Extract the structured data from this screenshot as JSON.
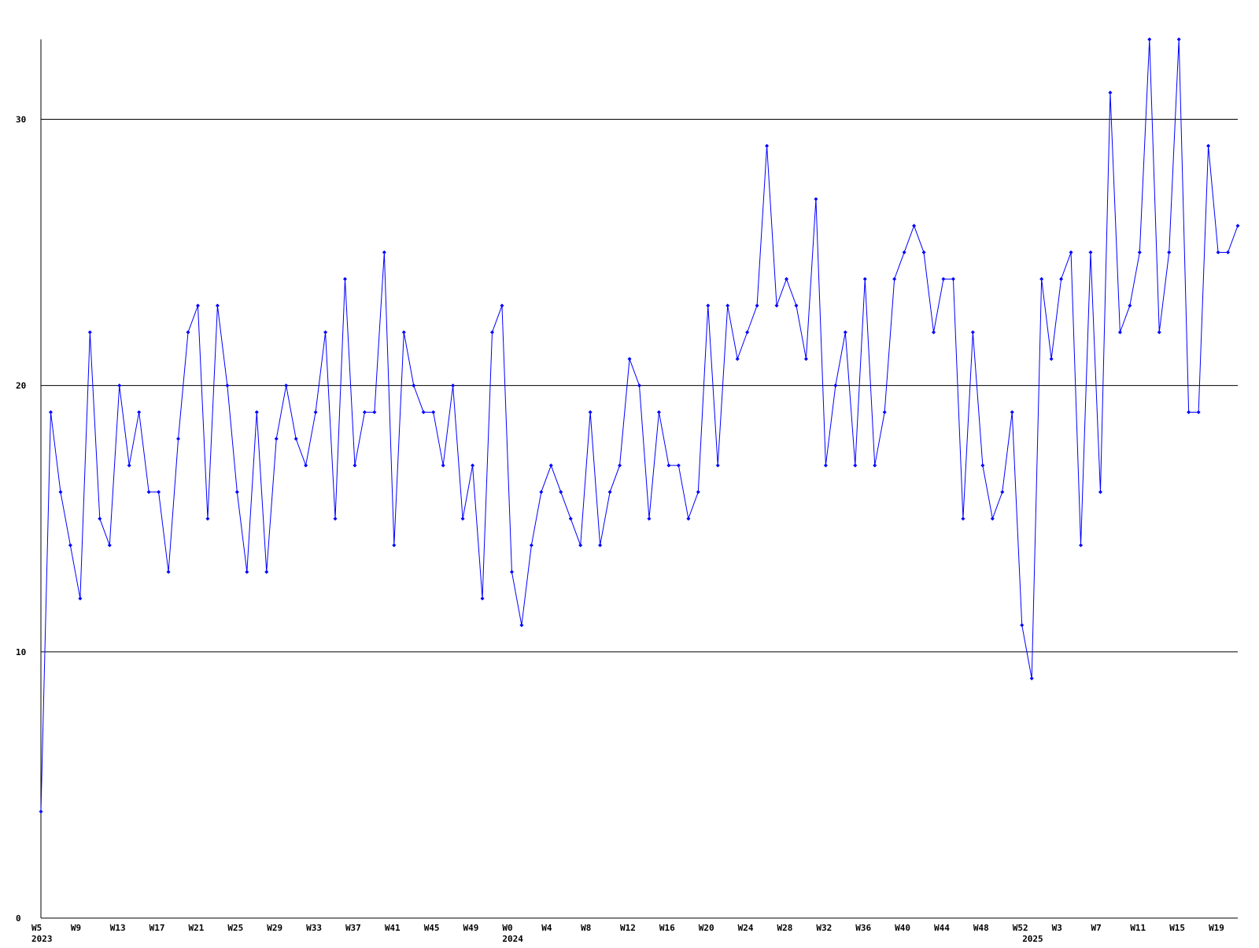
{
  "chart_data": {
    "type": "line",
    "categories": [
      "W5",
      null,
      null,
      null,
      "W9",
      null,
      null,
      null,
      "W13",
      null,
      null,
      null,
      "W17",
      null,
      null,
      null,
      "W21",
      null,
      null,
      null,
      "W25",
      null,
      null,
      null,
      "W29",
      null,
      null,
      null,
      "W33",
      null,
      null,
      null,
      "W37",
      null,
      null,
      null,
      "W41",
      null,
      null,
      null,
      "W45",
      null,
      null,
      null,
      "W49",
      null,
      null,
      null,
      "W0",
      null,
      null,
      null,
      "W4",
      null,
      null,
      null,
      "W8",
      null,
      null,
      null,
      "W12",
      null,
      null,
      null,
      "W16",
      null,
      null,
      null,
      "W20",
      null,
      null,
      null,
      "W24",
      null,
      null,
      null,
      "W28",
      null,
      null,
      null,
      "W32",
      null,
      null,
      null,
      "W36",
      null,
      null,
      null,
      "W40",
      null,
      null,
      null,
      "W44",
      null,
      null,
      null,
      "W48",
      null,
      null,
      null,
      "W52",
      null,
      null,
      null,
      "W3",
      null,
      null,
      null,
      "W7",
      null,
      null,
      null,
      "W11",
      null,
      null,
      null,
      "W15",
      null,
      null,
      null,
      "W19",
      null,
      null
    ],
    "year_labels": [
      "2023",
      null,
      null,
      null,
      null,
      null,
      null,
      null,
      null,
      null,
      null,
      null,
      null,
      null,
      null,
      null,
      null,
      null,
      null,
      null,
      null,
      null,
      null,
      null,
      null,
      null,
      null,
      null,
      null,
      null,
      null,
      null,
      null,
      null,
      null,
      null,
      null,
      null,
      null,
      null,
      null,
      null,
      null,
      null,
      null,
      null,
      null,
      null,
      "2024",
      null,
      null,
      null,
      null,
      null,
      null,
      null,
      null,
      null,
      null,
      null,
      null,
      null,
      null,
      null,
      null,
      null,
      null,
      null,
      null,
      null,
      null,
      null,
      null,
      null,
      null,
      null,
      null,
      null,
      null,
      null,
      null,
      null,
      null,
      null,
      null,
      null,
      null,
      null,
      null,
      null,
      null,
      null,
      null,
      null,
      null,
      null,
      null,
      null,
      null,
      null,
      null,
      "2025",
      null,
      null,
      null,
      null,
      null,
      null,
      null,
      null,
      null,
      null,
      null,
      null,
      null,
      null,
      null,
      null,
      null,
      null,
      null,
      null,
      null
    ],
    "series": [
      {
        "color": "#0000ff",
        "values": [
          4,
          19,
          16,
          14,
          12,
          22,
          15,
          14,
          20,
          17,
          19,
          16,
          16,
          13,
          18,
          22,
          23,
          15,
          23,
          20,
          16,
          13,
          19,
          13,
          18,
          20,
          18,
          17,
          19,
          22,
          15,
          24,
          17,
          19,
          19,
          25,
          14,
          22,
          20,
          19,
          19,
          17,
          20,
          15,
          17,
          12,
          22,
          23,
          13,
          11,
          14,
          16,
          17,
          16,
          15,
          14,
          19,
          14,
          16,
          17,
          21,
          20,
          15,
          19,
          17,
          17,
          15,
          16,
          23,
          17,
          23,
          21,
          22,
          23,
          29,
          23,
          24,
          23,
          21,
          27,
          17,
          20,
          22,
          17,
          24,
          17,
          19,
          24,
          25,
          26,
          25,
          22,
          24,
          24,
          15,
          22,
          17,
          15,
          16,
          19,
          11,
          9,
          24,
          21,
          24,
          25,
          14,
          25,
          16,
          31,
          22,
          23,
          25,
          33,
          22,
          25,
          33,
          19,
          19,
          29,
          25,
          25,
          26
        ]
      }
    ],
    "ylim": [
      0,
      33
    ],
    "yticks": [
      0,
      10,
      20,
      30
    ],
    "grid": true
  }
}
